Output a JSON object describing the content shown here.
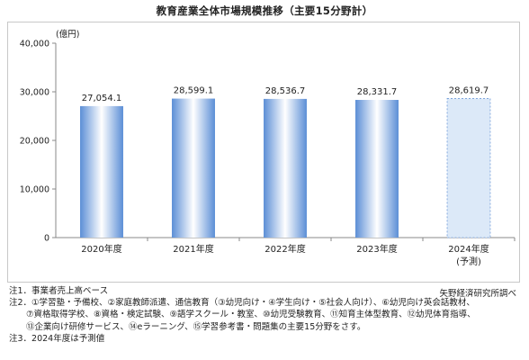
{
  "title": "教育産業全体市場規模推移（主要15分野計）",
  "source": "矢野経済研究所調べ",
  "notes": [
    "注1．事業者売上高ベース",
    "注2．①学習塾・予備校、②家庭教師派遣、通信教育（③幼児向け・④学生向け・⑤社会人向け）、⑥幼児向け英会話教材、",
    "　　⑦資格取得学校、⑧資格・検定試験、⑨語学スクール・教室、⑩幼児受験教育、⑪知育主体型教育、⑫幼児体育指導、",
    "　　⑬企業向け研修サービス、⑭eラーニング、⑮学習参考書・問題集の主要15分野をさす。",
    "注3．2024年度は予測値"
  ],
  "chart_data": {
    "type": "bar",
    "unit_label": "(億円)",
    "categories": [
      "2020年度",
      "2021年度",
      "2022年度",
      "2023年度",
      "2024年度"
    ],
    "category_sublabels": [
      "",
      "",
      "",
      "",
      "(予測)"
    ],
    "values": [
      27054.1,
      28599.1,
      28536.7,
      28331.7,
      28619.7
    ],
    "value_labels": [
      "27,054.1",
      "28,599.1",
      "28,536.7",
      "28,331.7",
      "28,619.7"
    ],
    "forecast": [
      false,
      false,
      false,
      false,
      true
    ],
    "ylim": [
      0,
      40000
    ],
    "yticks": [
      0,
      10000,
      20000,
      30000,
      40000
    ],
    "ytick_labels": [
      "0",
      "10,000",
      "20,000",
      "30,000",
      "40,000"
    ],
    "grid": false,
    "colors": {
      "bar_edge": "#5b8ed6",
      "bar_center": "#ffffff",
      "forecast_fill": "#dce9f8",
      "forecast_edge": "#6f9ad8",
      "axis": "#888888"
    }
  }
}
